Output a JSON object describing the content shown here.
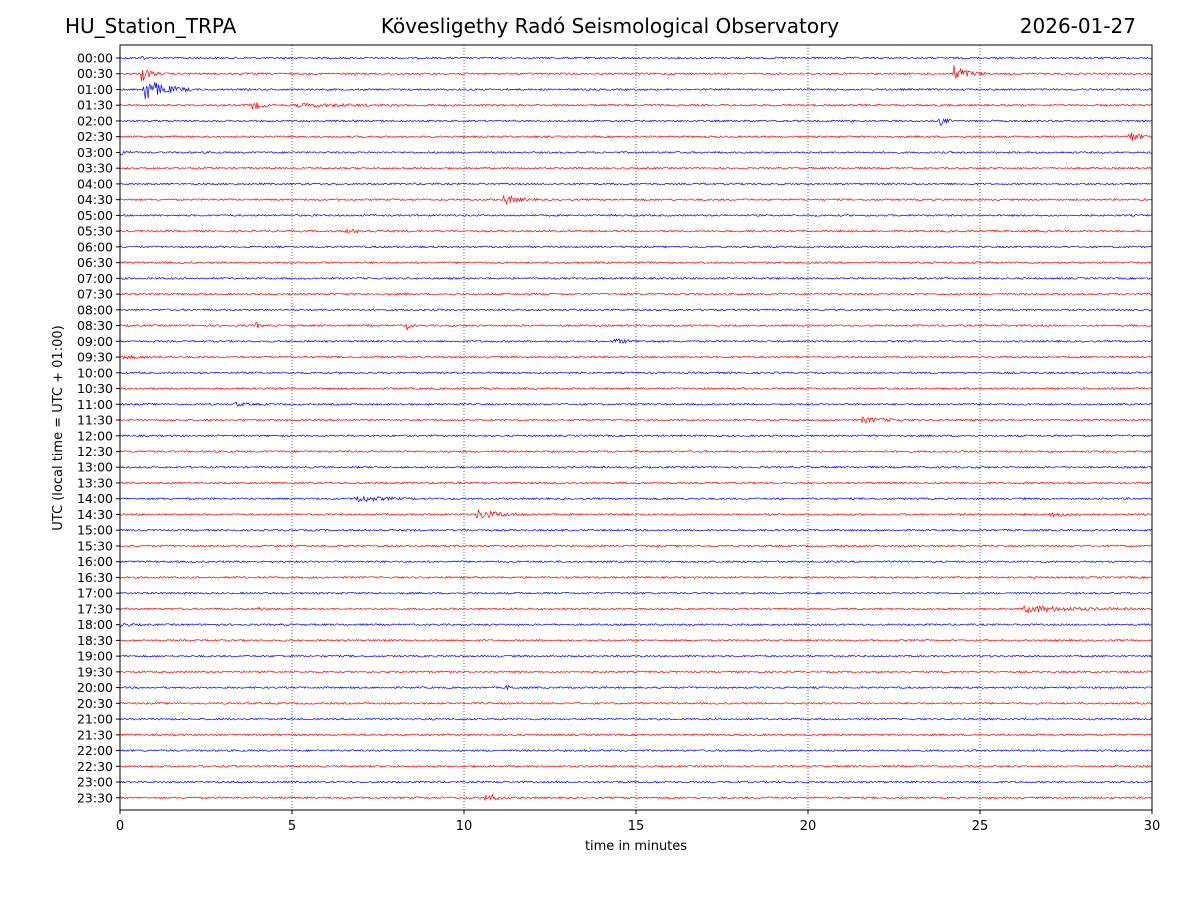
{
  "header": {
    "station": "HU_Station_TRPA",
    "observatory": "Kövesligethy Radó Seismological Observatory",
    "date": "2026-01-27"
  },
  "chart_data": {
    "type": "line",
    "title": "Kövesligethy Radó Seismological Observatory",
    "xlabel": "time in minutes",
    "ylabel": "UTC (local time = UTC + 01:00)",
    "xlim": [
      0,
      30
    ],
    "xticks": [
      0,
      5,
      10,
      15,
      20,
      25,
      30
    ],
    "grid": "vertical dotted at x ticks",
    "trace_colors": [
      "#0000ff",
      "#ff0000"
    ],
    "rows": [
      "00:00",
      "00:30",
      "01:00",
      "01:30",
      "02:00",
      "02:30",
      "03:00",
      "03:30",
      "04:00",
      "04:30",
      "05:00",
      "05:30",
      "06:00",
      "06:30",
      "07:00",
      "07:30",
      "08:00",
      "08:30",
      "09:00",
      "09:30",
      "10:00",
      "10:30",
      "11:00",
      "11:30",
      "12:00",
      "12:30",
      "13:00",
      "13:30",
      "14:00",
      "14:30",
      "15:00",
      "15:30",
      "16:00",
      "16:30",
      "17:00",
      "17:30",
      "18:00",
      "18:30",
      "19:00",
      "19:30",
      "20:00",
      "20:30",
      "21:00",
      "21:30",
      "22:00",
      "22:30",
      "23:00",
      "23:30"
    ],
    "events": [
      {
        "row": "00:00",
        "start": 0.6,
        "dur": 0.15,
        "amp": 8
      },
      {
        "row": "00:30",
        "start": 0.6,
        "dur": 0.6,
        "amp": 10
      },
      {
        "row": "00:30",
        "start": 24.2,
        "dur": 1.0,
        "amp": 10
      },
      {
        "row": "01:00",
        "start": 0.65,
        "dur": 1.5,
        "amp": 14
      },
      {
        "row": "01:30",
        "start": 3.8,
        "dur": 0.8,
        "amp": 5
      },
      {
        "row": "01:30",
        "start": 5.0,
        "dur": 5.0,
        "amp": 1.5
      },
      {
        "row": "02:00",
        "start": 23.8,
        "dur": 0.4,
        "amp": 7
      },
      {
        "row": "02:30",
        "start": 29.3,
        "dur": 0.7,
        "amp": 7
      },
      {
        "row": "03:00",
        "start": 0.0,
        "dur": 0.5,
        "amp": 3
      },
      {
        "row": "04:30",
        "start": 11.1,
        "dur": 1.0,
        "amp": 6
      },
      {
        "row": "05:30",
        "start": 6.5,
        "dur": 2.0,
        "amp": 1.5
      },
      {
        "row": "08:30",
        "start": 3.9,
        "dur": 0.3,
        "amp": 5
      },
      {
        "row": "08:30",
        "start": 8.3,
        "dur": 0.3,
        "amp": 6
      },
      {
        "row": "09:00",
        "start": 14.3,
        "dur": 1.3,
        "amp": 2.5
      },
      {
        "row": "09:30",
        "start": 0.0,
        "dur": 2.0,
        "amp": 1.5
      },
      {
        "row": "11:00",
        "start": 3.3,
        "dur": 1.0,
        "amp": 2
      },
      {
        "row": "11:30",
        "start": 21.5,
        "dur": 1.8,
        "amp": 3
      },
      {
        "row": "14:00",
        "start": 6.8,
        "dur": 1.8,
        "amp": 4
      },
      {
        "row": "14:30",
        "start": 10.3,
        "dur": 1.9,
        "amp": 5
      },
      {
        "row": "14:30",
        "start": 27.0,
        "dur": 1.5,
        "amp": 2.5
      },
      {
        "row": "17:30",
        "start": 4.0,
        "dur": 0.4,
        "amp": 2.5
      },
      {
        "row": "17:30",
        "start": 26.2,
        "dur": 3.5,
        "amp": 4
      },
      {
        "row": "18:00",
        "start": 0.0,
        "dur": 0.8,
        "amp": 2
      },
      {
        "row": "20:00",
        "start": 11.2,
        "dur": 0.5,
        "amp": 2.5
      },
      {
        "row": "23:30",
        "start": 10.6,
        "dur": 0.7,
        "amp": 6
      }
    ]
  }
}
